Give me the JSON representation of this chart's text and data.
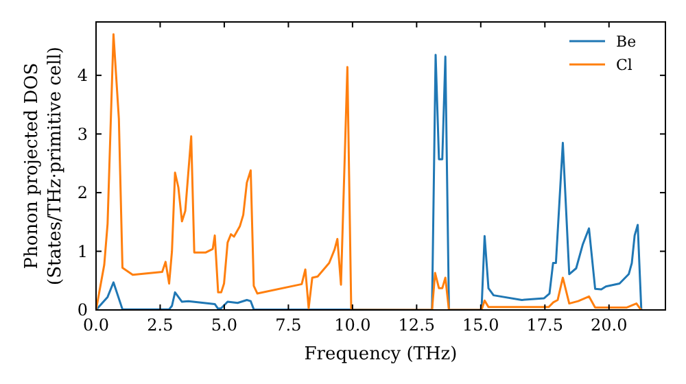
{
  "chart_data": {
    "type": "line",
    "xlabel": "Frequency (THz)",
    "ylabel": "Phonon projected DOS\n(States/THz·primitive cell)",
    "xlim": [
      0,
      22.2
    ],
    "ylim": [
      0,
      4.91
    ],
    "xticks": [
      {
        "value": 0,
        "label": "0.0"
      },
      {
        "value": 2.5,
        "label": "2.5"
      },
      {
        "value": 5,
        "label": "5.0"
      },
      {
        "value": 7.5,
        "label": "7.5"
      },
      {
        "value": 10,
        "label": "10.0"
      },
      {
        "value": 12.5,
        "label": "12.5"
      },
      {
        "value": 15,
        "label": "15.0"
      },
      {
        "value": 17.5,
        "label": "17.5"
      },
      {
        "value": 20,
        "label": "20.0"
      }
    ],
    "yticks": [
      0,
      1,
      2,
      3,
      4
    ],
    "grid": false,
    "legend": "top right",
    "line_style": "solid",
    "series": [
      {
        "name": "Be",
        "color": "#1f77b4",
        "x": [
          0,
          0.45,
          0.68,
          1.03,
          2.85,
          2.96,
          3.08,
          3.35,
          3.6,
          4.63,
          4.76,
          4.88,
          5.13,
          5.52,
          5.88,
          6.03,
          6.15,
          13.1,
          13.24,
          13.37,
          13.5,
          13.62,
          13.76,
          15.03,
          15.15,
          15.3,
          15.5,
          16.6,
          17.47,
          17.68,
          17.82,
          17.93,
          18.2,
          18.45,
          18.72,
          18.98,
          19.22,
          19.46,
          19.7,
          19.88,
          20.41,
          20.77,
          20.89,
          21.0,
          21.12,
          21.26
        ],
        "values": [
          0,
          0.22,
          0.47,
          0.01,
          0.01,
          0.07,
          0.3,
          0.14,
          0.15,
          0.1,
          0.02,
          0.03,
          0.14,
          0.12,
          0.17,
          0.15,
          0.01,
          0,
          4.35,
          2.57,
          2.57,
          4.32,
          0,
          0,
          1.26,
          0.37,
          0.25,
          0.17,
          0.2,
          0.28,
          0.8,
          0.8,
          2.85,
          0.61,
          0.71,
          1.12,
          1.39,
          0.36,
          0.35,
          0.4,
          0.45,
          0.61,
          0.8,
          1.27,
          1.45,
          0
        ]
      },
      {
        "name": "Cl",
        "color": "#ff7f0e",
        "x": [
          0,
          0.32,
          0.45,
          0.68,
          0.89,
          1.03,
          1.43,
          2.58,
          2.71,
          2.85,
          2.96,
          3.08,
          3.21,
          3.35,
          3.48,
          3.71,
          3.83,
          4.28,
          4.55,
          4.63,
          4.76,
          4.88,
          4.99,
          5.13,
          5.26,
          5.38,
          5.61,
          5.74,
          5.88,
          6.03,
          6.15,
          6.29,
          8.02,
          8.16,
          8.29,
          8.43,
          8.64,
          9.09,
          9.3,
          9.41,
          9.55,
          9.8,
          9.95,
          13.1,
          13.22,
          13.37,
          13.5,
          13.62,
          13.76,
          15.03,
          15.15,
          15.3,
          17.65,
          17.83,
          18.0,
          18.2,
          18.45,
          18.8,
          19.22,
          19.46,
          20.68,
          21.07,
          21.2,
          21.26
        ],
        "values": [
          0,
          0.77,
          1.47,
          4.7,
          3.26,
          0.72,
          0.6,
          0.65,
          0.82,
          0.45,
          1.0,
          2.34,
          2.09,
          1.51,
          1.69,
          2.96,
          0.98,
          0.98,
          1.04,
          1.27,
          0.3,
          0.3,
          0.45,
          1.15,
          1.29,
          1.25,
          1.43,
          1.62,
          2.17,
          2.38,
          0.41,
          0.28,
          0.44,
          0.69,
          0.03,
          0.55,
          0.57,
          0.8,
          1.03,
          1.21,
          0.43,
          4.14,
          0,
          0,
          0.63,
          0.37,
          0.37,
          0.55,
          0,
          0,
          0.16,
          0.05,
          0.05,
          0.13,
          0.17,
          0.55,
          0.11,
          0.15,
          0.23,
          0.04,
          0.04,
          0.11,
          0.03,
          0
        ]
      }
    ]
  }
}
